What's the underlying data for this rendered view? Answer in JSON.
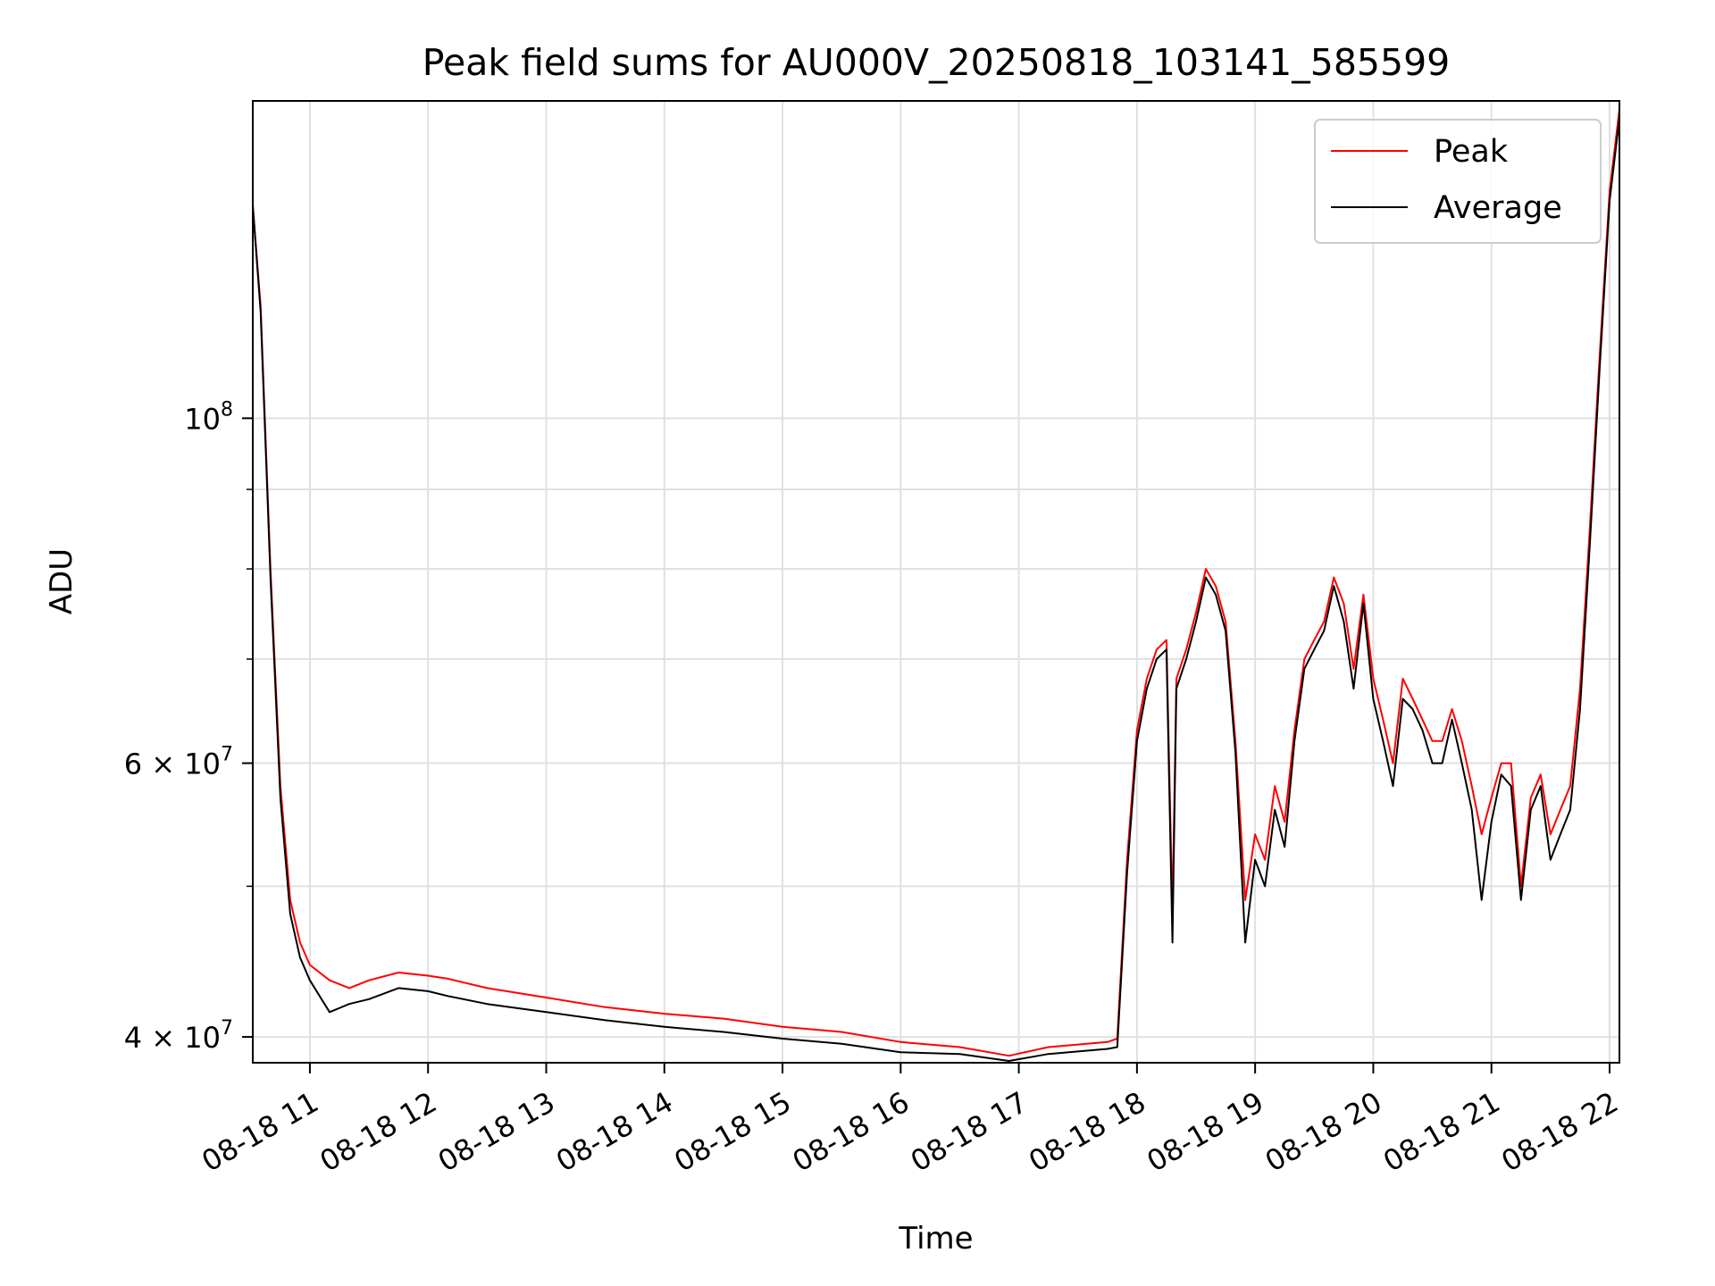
{
  "chart_data": {
    "type": "line",
    "title": "Peak field sums for AU000V_20250818_103141_585599",
    "xlabel": "Time",
    "ylabel": "ADU",
    "x_scale": "time",
    "y_scale": "log",
    "xlim": [
      "2025-08-18T10:31",
      "2025-08-18T22:05"
    ],
    "ylim": [
      38500000,
      160000000
    ],
    "grid": true,
    "legend_position": "top-right",
    "x_ticks": [
      {
        "value": "2025-08-18T11:00",
        "label": "08-18 11"
      },
      {
        "value": "2025-08-18T12:00",
        "label": "08-18 12"
      },
      {
        "value": "2025-08-18T13:00",
        "label": "08-18 13"
      },
      {
        "value": "2025-08-18T14:00",
        "label": "08-18 14"
      },
      {
        "value": "2025-08-18T15:00",
        "label": "08-18 15"
      },
      {
        "value": "2025-08-18T16:00",
        "label": "08-18 16"
      },
      {
        "value": "2025-08-18T17:00",
        "label": "08-18 17"
      },
      {
        "value": "2025-08-18T18:00",
        "label": "08-18 18"
      },
      {
        "value": "2025-08-18T19:00",
        "label": "08-18 19"
      },
      {
        "value": "2025-08-18T20:00",
        "label": "08-18 20"
      },
      {
        "value": "2025-08-18T21:00",
        "label": "08-18 21"
      },
      {
        "value": "2025-08-18T22:00",
        "label": "08-18 22"
      }
    ],
    "y_ticks": [
      {
        "value": 40000000,
        "label": "4 × 10⁷",
        "mantissa": "4 × 10",
        "exponent": "7"
      },
      {
        "value": 60000000,
        "label": "6 × 10⁷",
        "mantissa": "6 × 10",
        "exponent": "7"
      },
      {
        "value": 100000000,
        "label": "10⁸",
        "mantissa": "10",
        "exponent": "8"
      }
    ],
    "y_minor_ticks": [
      50000000,
      70000000,
      80000000,
      90000000
    ],
    "series": [
      {
        "name": "Peak",
        "color": "#ff0000",
        "x": [
          "2025-08-18T10:31",
          "2025-08-18T10:35",
          "2025-08-18T10:40",
          "2025-08-18T10:45",
          "2025-08-18T10:50",
          "2025-08-18T10:55",
          "2025-08-18T11:00",
          "2025-08-18T11:10",
          "2025-08-18T11:20",
          "2025-08-18T11:30",
          "2025-08-18T11:45",
          "2025-08-18T12:00",
          "2025-08-18T12:10",
          "2025-08-18T12:30",
          "2025-08-18T13:00",
          "2025-08-18T13:30",
          "2025-08-18T14:00",
          "2025-08-18T14:30",
          "2025-08-18T15:00",
          "2025-08-18T15:30",
          "2025-08-18T16:00",
          "2025-08-18T16:30",
          "2025-08-18T16:55",
          "2025-08-18T17:15",
          "2025-08-18T17:45",
          "2025-08-18T17:50",
          "2025-08-18T17:55",
          "2025-08-18T18:00",
          "2025-08-18T18:05",
          "2025-08-18T18:10",
          "2025-08-18T18:15",
          "2025-08-18T18:18",
          "2025-08-18T18:20",
          "2025-08-18T18:25",
          "2025-08-18T18:30",
          "2025-08-18T18:35",
          "2025-08-18T18:40",
          "2025-08-18T18:45",
          "2025-08-18T18:50",
          "2025-08-18T18:55",
          "2025-08-18T19:00",
          "2025-08-18T19:05",
          "2025-08-18T19:10",
          "2025-08-18T19:15",
          "2025-08-18T19:20",
          "2025-08-18T19:25",
          "2025-08-18T19:30",
          "2025-08-18T19:35",
          "2025-08-18T19:40",
          "2025-08-18T19:45",
          "2025-08-18T19:50",
          "2025-08-18T19:55",
          "2025-08-18T20:00",
          "2025-08-18T20:05",
          "2025-08-18T20:10",
          "2025-08-18T20:15",
          "2025-08-18T20:20",
          "2025-08-18T20:25",
          "2025-08-18T20:30",
          "2025-08-18T20:35",
          "2025-08-18T20:40",
          "2025-08-18T20:45",
          "2025-08-18T20:50",
          "2025-08-18T20:55",
          "2025-08-18T21:00",
          "2025-08-18T21:05",
          "2025-08-18T21:10",
          "2025-08-18T21:15",
          "2025-08-18T21:20",
          "2025-08-18T21:25",
          "2025-08-18T21:30",
          "2025-08-18T21:35",
          "2025-08-18T21:40",
          "2025-08-18T21:45",
          "2025-08-18T21:50",
          "2025-08-18T21:55",
          "2025-08-18T22:00",
          "2025-08-18T22:05"
        ],
        "values": [
          137000000,
          118000000,
          80000000,
          58000000,
          49000000,
          46000000,
          44500000,
          43500000,
          43000000,
          43500000,
          44000000,
          43800000,
          43600000,
          43000000,
          42400000,
          41800000,
          41400000,
          41100000,
          40600000,
          40300000,
          39700000,
          39400000,
          38900000,
          39400000,
          39700000,
          39900000,
          52000000,
          63000000,
          68000000,
          71000000,
          72000000,
          48000000,
          68000000,
          71000000,
          75000000,
          80000000,
          78000000,
          74000000,
          62000000,
          49000000,
          54000000,
          52000000,
          58000000,
          55000000,
          63000000,
          70000000,
          72000000,
          74000000,
          79000000,
          76000000,
          69000000,
          77000000,
          68000000,
          64000000,
          60000000,
          68000000,
          66000000,
          64000000,
          62000000,
          62000000,
          65000000,
          62000000,
          58000000,
          54000000,
          57000000,
          60000000,
          60000000,
          50000000,
          57000000,
          59000000,
          54000000,
          56000000,
          58000000,
          67000000,
          85000000,
          110000000,
          140000000,
          158000000
        ]
      },
      {
        "name": "Average",
        "color": "#000000",
        "x": [
          "2025-08-18T10:31",
          "2025-08-18T10:35",
          "2025-08-18T10:40",
          "2025-08-18T10:45",
          "2025-08-18T10:50",
          "2025-08-18T10:55",
          "2025-08-18T11:00",
          "2025-08-18T11:10",
          "2025-08-18T11:20",
          "2025-08-18T11:30",
          "2025-08-18T11:45",
          "2025-08-18T12:00",
          "2025-08-18T12:10",
          "2025-08-18T12:30",
          "2025-08-18T13:00",
          "2025-08-18T13:30",
          "2025-08-18T14:00",
          "2025-08-18T14:30",
          "2025-08-18T15:00",
          "2025-08-18T15:30",
          "2025-08-18T16:00",
          "2025-08-18T16:30",
          "2025-08-18T16:55",
          "2025-08-18T17:15",
          "2025-08-18T17:45",
          "2025-08-18T17:50",
          "2025-08-18T17:55",
          "2025-08-18T18:00",
          "2025-08-18T18:05",
          "2025-08-18T18:10",
          "2025-08-18T18:15",
          "2025-08-18T18:18",
          "2025-08-18T18:20",
          "2025-08-18T18:25",
          "2025-08-18T18:30",
          "2025-08-18T18:35",
          "2025-08-18T18:40",
          "2025-08-18T18:45",
          "2025-08-18T18:50",
          "2025-08-18T18:55",
          "2025-08-18T19:00",
          "2025-08-18T19:05",
          "2025-08-18T19:10",
          "2025-08-18T19:15",
          "2025-08-18T19:20",
          "2025-08-18T19:25",
          "2025-08-18T19:30",
          "2025-08-18T19:35",
          "2025-08-18T19:40",
          "2025-08-18T19:45",
          "2025-08-18T19:50",
          "2025-08-18T19:55",
          "2025-08-18T20:00",
          "2025-08-18T20:05",
          "2025-08-18T20:10",
          "2025-08-18T20:15",
          "2025-08-18T20:20",
          "2025-08-18T20:25",
          "2025-08-18T20:30",
          "2025-08-18T20:35",
          "2025-08-18T20:40",
          "2025-08-18T20:45",
          "2025-08-18T20:50",
          "2025-08-18T20:55",
          "2025-08-18T21:00",
          "2025-08-18T21:05",
          "2025-08-18T21:10",
          "2025-08-18T21:15",
          "2025-08-18T21:20",
          "2025-08-18T21:25",
          "2025-08-18T21:30",
          "2025-08-18T21:35",
          "2025-08-18T21:40",
          "2025-08-18T21:45",
          "2025-08-18T21:50",
          "2025-08-18T21:55",
          "2025-08-18T22:00",
          "2025-08-18T22:05"
        ],
        "values": [
          137000000,
          117000000,
          79000000,
          57000000,
          48000000,
          45000000,
          43500000,
          41500000,
          42000000,
          42300000,
          43000000,
          42800000,
          42500000,
          42000000,
          41500000,
          41000000,
          40600000,
          40300000,
          39900000,
          39600000,
          39100000,
          39000000,
          38600000,
          39000000,
          39300000,
          39400000,
          51000000,
          62000000,
          67000000,
          70000000,
          71000000,
          46000000,
          67000000,
          70000000,
          74000000,
          79000000,
          77000000,
          73000000,
          61000000,
          46000000,
          52000000,
          50000000,
          56000000,
          53000000,
          62000000,
          69000000,
          71000000,
          73000000,
          78000000,
          74000000,
          67000000,
          76000000,
          66000000,
          62000000,
          58000000,
          66000000,
          65000000,
          63000000,
          60000000,
          60000000,
          64000000,
          60000000,
          56000000,
          49000000,
          55000000,
          59000000,
          58000000,
          49000000,
          56000000,
          58000000,
          52000000,
          54000000,
          56000000,
          65000000,
          83000000,
          108000000,
          138000000,
          156000000
        ]
      }
    ]
  },
  "colors": {
    "peak": "#ff0000",
    "average": "#000000",
    "grid": "#e0e0e0",
    "frame": "#000000",
    "background": "#ffffff"
  }
}
